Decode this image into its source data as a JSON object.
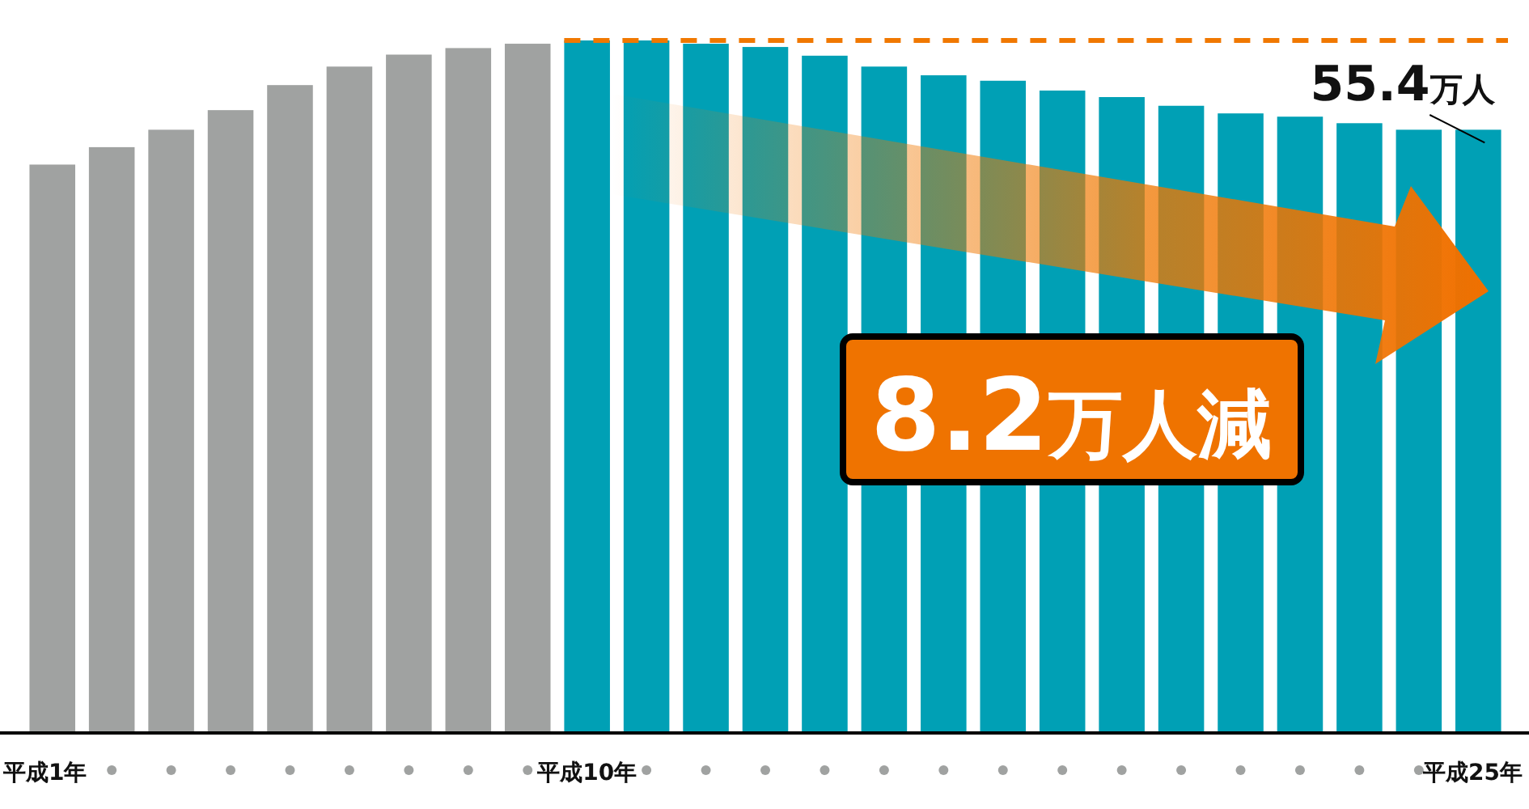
{
  "chart_data": {
    "type": "bar",
    "categories": [
      "平成1年",
      null,
      null,
      null,
      null,
      null,
      null,
      null,
      null,
      "平成10年",
      null,
      null,
      null,
      null,
      null,
      null,
      null,
      null,
      null,
      null,
      null,
      null,
      null,
      null,
      "平成25年"
    ],
    "values": [
      52.2,
      53.8,
      55.4,
      57.2,
      59.5,
      61.2,
      62.3,
      62.9,
      63.3,
      63.6,
      63.6,
      63.3,
      63.0,
      62.2,
      61.2,
      60.4,
      59.9,
      59.0,
      58.4,
      57.6,
      56.9,
      56.6,
      56.0,
      55.4,
      55.4
    ],
    "colors": [
      "#a0a2a1",
      "#a0a2a1",
      "#a0a2a1",
      "#a0a2a1",
      "#a0a2a1",
      "#a0a2a1",
      "#a0a2a1",
      "#a0a2a1",
      "#a0a2a1",
      "#00a0b5",
      "#00a0b5",
      "#00a0b5",
      "#00a0b5",
      "#00a0b5",
      "#00a0b5",
      "#00a0b5",
      "#00a0b5",
      "#00a0b5",
      "#00a0b5",
      "#00a0b5",
      "#00a0b5",
      "#00a0b5",
      "#00a0b5",
      "#00a0b5",
      "#00a0b5"
    ],
    "value_labels": [
      null,
      null,
      null,
      null,
      null,
      null,
      null,
      null,
      null,
      null,
      null,
      null,
      null,
      null,
      null,
      null,
      null,
      null,
      null,
      null,
      null,
      null,
      null,
      null,
      "55.4万人"
    ],
    "annotations": [
      "8.2万人減"
    ],
    "ref_lines": [
      {
        "axis": "y",
        "value": 63.6,
        "color": "#f07800",
        "line_style": "dashed"
      }
    ]
  }
}
